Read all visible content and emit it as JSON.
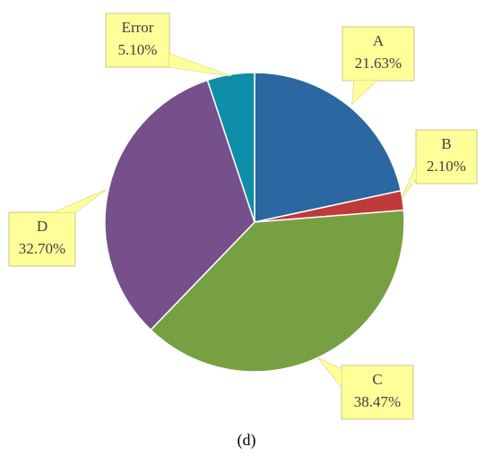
{
  "chart_data": {
    "type": "pie",
    "caption": "(d)",
    "categories": [
      "A",
      "B",
      "C",
      "D",
      "Error"
    ],
    "values": [
      21.63,
      2.1,
      38.47,
      32.7,
      5.1
    ],
    "value_labels": [
      "21.63%",
      "2.10%",
      "38.47%",
      "32.70%",
      "5.10%"
    ],
    "colors": [
      "#2b67a0",
      "#c0393b",
      "#77a043",
      "#76508a",
      "#0e8ea8"
    ]
  }
}
